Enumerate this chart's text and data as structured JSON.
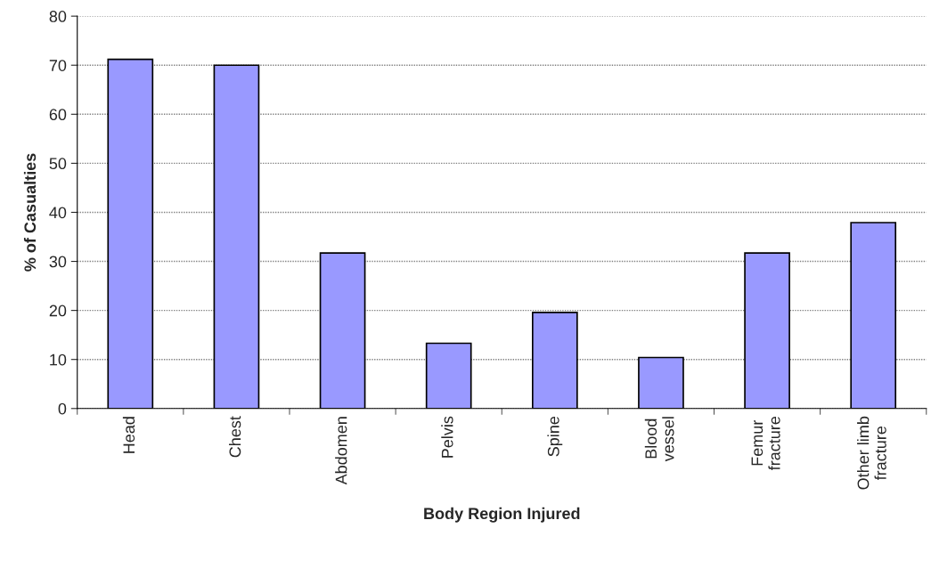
{
  "chart_data": {
    "type": "bar",
    "xlabel": "Body Region Injured",
    "ylabel": "% of Casualties",
    "categories": [
      "Head",
      "Chest",
      "Abdomen",
      "Pelvis",
      "Spine",
      "Blood\nvessel",
      "Femur\nfracture",
      "Other limb\nfracture"
    ],
    "values": [
      71.2,
      70,
      31.7,
      13.3,
      19.6,
      10.4,
      31.7,
      37.9
    ],
    "color": "#9999ff",
    "ylim": [
      0,
      80
    ],
    "yticks": [
      0,
      10,
      20,
      30,
      40,
      50,
      60,
      70,
      80
    ],
    "grid": "y"
  }
}
